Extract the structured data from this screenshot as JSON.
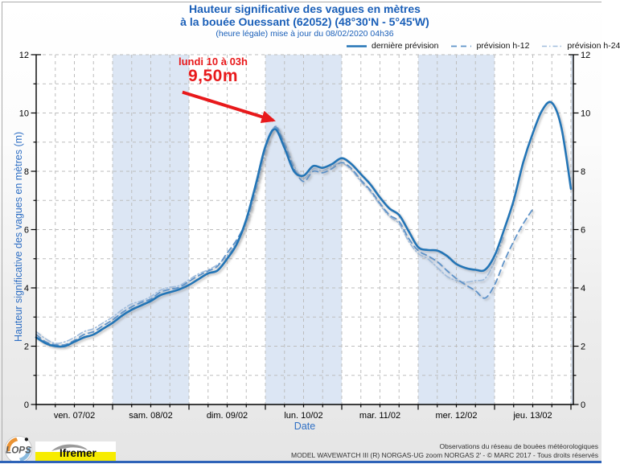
{
  "title": {
    "line1": "Hauteur significative des vagues en mètres",
    "line2": "à la bouée Ouessant (62052) (48°30'N - 5°45'W)",
    "line3": "(heure légale) mise à jour du 08/02/2020 04h36"
  },
  "legend": [
    {
      "label": "dernière prévision",
      "style": "solid"
    },
    {
      "label": "prévision h-12",
      "style": "dashed"
    },
    {
      "label": "prévision h-24",
      "style": "dashdot"
    }
  ],
  "axes": {
    "ylabel": "Hauteur significative des vagues en mètres (m)",
    "xlabel": "Date"
  },
  "annotation": {
    "line1": "lundi 10 à 03h",
    "line2": "9,50m"
  },
  "footer": {
    "credit1": "Observations du réseau de bouées météorologiques",
    "credit2": "MODEL WAVEWATCH III (R) NORGAS-UG zoom NORGAS 2' - © MARC 2017 - Tous droits réservés"
  },
  "logos": {
    "lops": "LOPS",
    "ifremer": "Ifremer"
  },
  "colors": {
    "band": "#dce6f4",
    "grid": "#bdbdbd",
    "axis": "#000000",
    "tick_text": "#000000",
    "title_blue": "#1a5fb8",
    "axis_label_blue": "#2f6fc4",
    "annotation_red": "#e8191b",
    "footer_text": "#333333",
    "bottom_bar": "#2e63b8",
    "solid_line": "#2474b6",
    "h12_line": "#5e93c9",
    "h24_line": "#a0bcdc"
  },
  "chart_data": {
    "type": "line",
    "title": "Hauteur significative des vagues en mètres à la bouée Ouessant (62052)",
    "xlabel": "Date",
    "ylabel": "Hauteur significative des vagues en mètres (m)",
    "ylim": [
      0,
      12
    ],
    "y_major_ticks": [
      0,
      2,
      4,
      6,
      8,
      10,
      12
    ],
    "y_minor_step": 1,
    "x_minor_step_days": 0.25,
    "grid": "dashed",
    "legend_position": "top-right",
    "categories": [
      "ven. 07/02",
      "sam. 08/02",
      "dim. 09/02",
      "lun. 10/02",
      "mar. 11/02",
      "mer. 12/02",
      "jeu. 13/02"
    ],
    "shaded_day_indices": [
      1,
      3,
      5
    ],
    "right_edge_shaded": true,
    "x_unit": "days since ven. 07/02 00:00 (heure légale)",
    "annotation_peak": {
      "text": "lundi 10 à 03h",
      "value_text": "9,50m",
      "x_days": 3.125,
      "y_m": 9.5
    },
    "series": [
      {
        "name": "dernière prévision",
        "style": "solid",
        "color": "#2474b6",
        "width": 2.6,
        "x_start": 0,
        "x_step": 0.125,
        "y": [
          2.3,
          2.1,
          2.0,
          2.0,
          2.15,
          2.3,
          2.4,
          2.6,
          2.8,
          3.05,
          3.25,
          3.4,
          3.55,
          3.75,
          3.85,
          3.95,
          4.1,
          4.3,
          4.5,
          4.6,
          5.0,
          5.5,
          6.35,
          7.55,
          8.85,
          9.45,
          8.8,
          8.0,
          7.85,
          8.18,
          8.12,
          8.25,
          8.45,
          8.25,
          7.9,
          7.55,
          7.1,
          6.72,
          6.5,
          5.95,
          5.4,
          5.3,
          5.28,
          5.1,
          4.82,
          4.68,
          4.62,
          4.62,
          5.1,
          6.0,
          7.0,
          8.3,
          9.3,
          10.1,
          10.35,
          9.5,
          7.4
        ]
      },
      {
        "name": "prévision h-12",
        "style": "dashed",
        "color": "#5e93c9",
        "width": 1.8,
        "x_start": 0,
        "x_step": 0.125,
        "y": [
          2.4,
          2.15,
          2.05,
          2.05,
          2.2,
          2.4,
          2.5,
          2.7,
          2.9,
          3.15,
          3.35,
          3.5,
          3.62,
          3.85,
          3.95,
          4.02,
          4.22,
          4.42,
          4.58,
          4.75,
          5.2,
          5.65,
          6.3,
          7.45,
          8.8,
          9.52,
          8.95,
          8.1,
          7.65,
          8.0,
          7.95,
          8.1,
          8.3,
          8.1,
          7.7,
          7.35,
          6.9,
          6.5,
          6.28,
          5.7,
          5.28,
          5.1,
          4.9,
          4.6,
          4.32,
          4.1,
          3.9,
          3.65,
          4.1,
          4.9,
          5.6,
          6.2,
          6.7
        ]
      },
      {
        "name": "prévision h-24",
        "style": "dashdot",
        "color": "#a0bcdc",
        "width": 1.6,
        "x_start": 0,
        "x_step": 0.125,
        "y": [
          2.5,
          2.25,
          2.1,
          2.15,
          2.3,
          2.5,
          2.6,
          2.8,
          3.0,
          3.25,
          3.45,
          3.55,
          3.7,
          3.92,
          4.02,
          4.08,
          4.28,
          4.48,
          4.62,
          4.8,
          5.1,
          5.58,
          6.2,
          7.3,
          8.65,
          9.55,
          9.0,
          8.2,
          7.75,
          8.08,
          8.02,
          8.18,
          8.28,
          8.05,
          7.65,
          7.3,
          6.85,
          6.45,
          6.2,
          5.6,
          5.18,
          5.0,
          4.7,
          4.4,
          4.25,
          4.2,
          4.25,
          4.32,
          4.9,
          5.8
        ]
      }
    ]
  }
}
